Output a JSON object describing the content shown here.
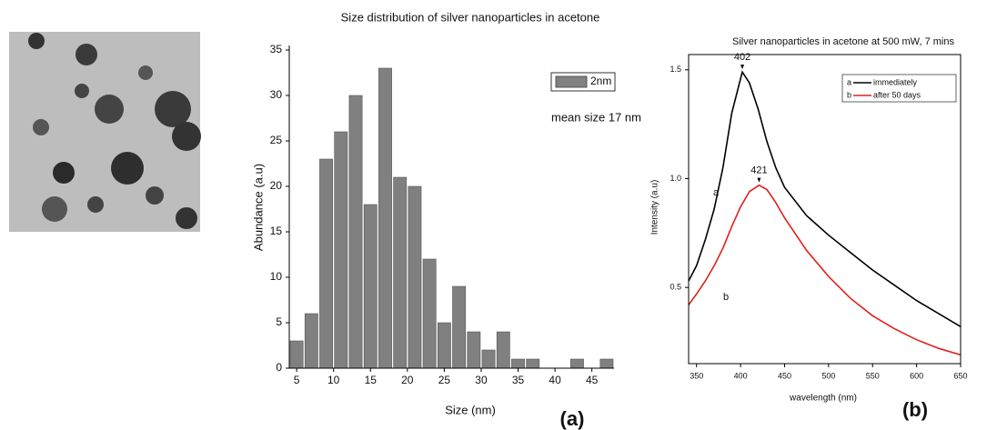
{
  "chart_data": [
    {
      "type": "histogram",
      "title": "Size distribution of silver nanoparticles in acetone",
      "x_label": "Size (nm)",
      "y_label": "Abundance (a.u)",
      "bins": [
        4,
        6,
        8,
        10,
        12,
        14,
        16,
        18,
        20,
        22,
        24,
        26,
        28,
        30,
        32,
        34,
        36,
        38,
        40,
        42,
        44,
        46,
        48
      ],
      "series": [
        {
          "name": "2nm",
          "color": "#808080",
          "values": [
            3,
            6,
            23,
            26,
            30,
            18,
            33,
            21,
            20,
            12,
            5,
            9,
            4,
            2,
            4,
            1,
            1,
            0,
            0,
            1,
            0,
            1
          ]
        }
      ],
      "annotation": "mean size 17 nm",
      "xlim": [
        4,
        48
      ],
      "xticks": [
        5,
        10,
        15,
        20,
        25,
        30,
        35,
        40,
        45
      ],
      "ylim": [
        0,
        35.5
      ],
      "yticks": [
        0,
        5,
        10,
        15,
        20,
        25,
        30,
        35
      ],
      "panel_label": "(a)"
    },
    {
      "type": "line",
      "title": "Silver nanoparticles in acetone  at 500 mW, 7 mins",
      "x_label": "wavelength (nm)",
      "y_label": "Intensity (a.u)",
      "series": [
        {
          "name": "immediately",
          "label": "a",
          "peak_label": "402",
          "color": "#000000",
          "x": [
            341,
            350,
            360,
            370,
            380,
            390,
            402,
            410,
            420,
            430,
            440,
            450,
            475,
            500,
            525,
            550,
            575,
            600,
            625,
            650
          ],
          "values": [
            0.53,
            0.6,
            0.72,
            0.86,
            1.05,
            1.3,
            1.49,
            1.44,
            1.32,
            1.17,
            1.05,
            0.96,
            0.83,
            0.74,
            0.66,
            0.58,
            0.51,
            0.44,
            0.38,
            0.32
          ]
        },
        {
          "name": "after 50 days",
          "label": "b",
          "peak_label": "421",
          "color": "#e0201b",
          "x": [
            341,
            350,
            360,
            370,
            380,
            390,
            400,
            410,
            421,
            430,
            440,
            450,
            475,
            500,
            525,
            550,
            575,
            600,
            625,
            650
          ],
          "values": [
            0.42,
            0.47,
            0.53,
            0.6,
            0.68,
            0.78,
            0.87,
            0.94,
            0.97,
            0.95,
            0.89,
            0.82,
            0.67,
            0.55,
            0.45,
            0.37,
            0.31,
            0.26,
            0.22,
            0.19
          ]
        }
      ],
      "xlim": [
        341,
        650
      ],
      "xticks": [
        350,
        400,
        450,
        500,
        550,
        600,
        650
      ],
      "ylim": [
        0.15,
        1.57
      ],
      "yticks": [
        0.5,
        {
          "value": 1,
          "label": "1.0"
        },
        1.5
      ],
      "panel_label": "(b)"
    }
  ]
}
